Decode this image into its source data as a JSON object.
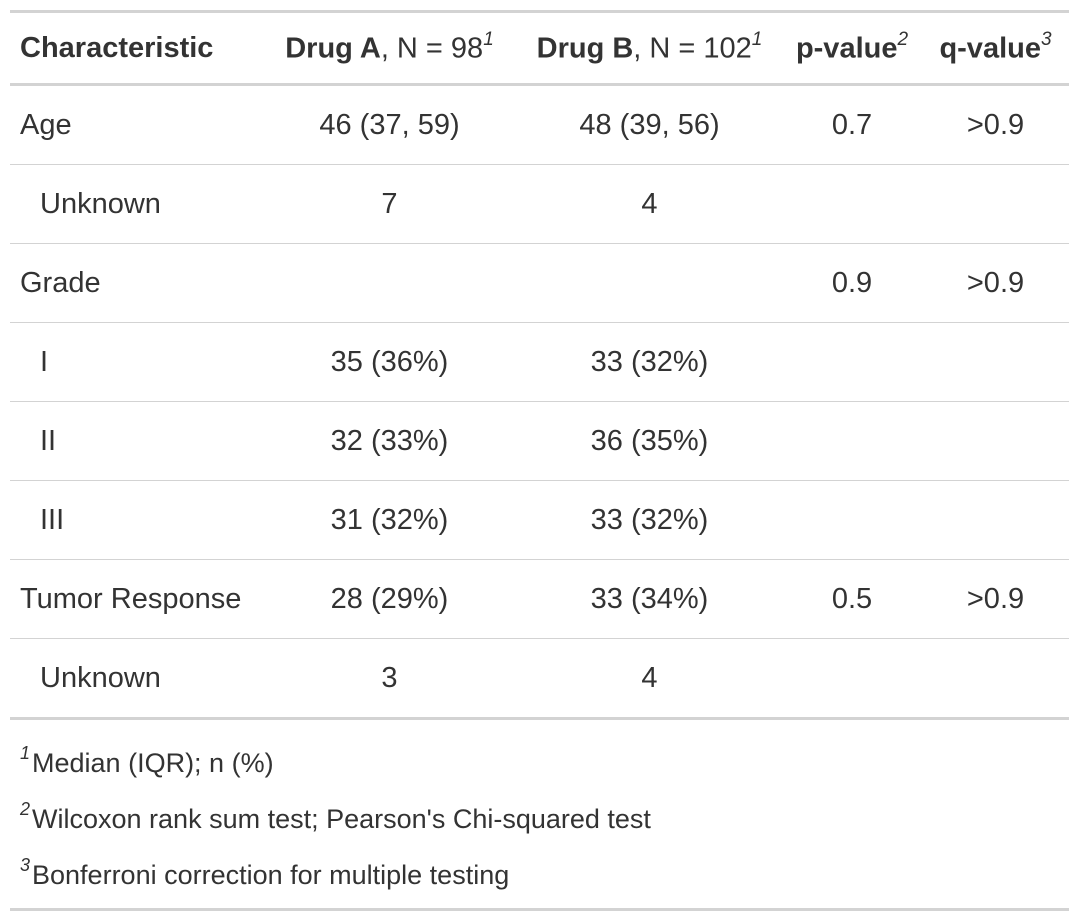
{
  "header": {
    "characteristic": "Characteristic",
    "drug_a_name": "Drug A",
    "drug_a_n": ", N = 98",
    "drug_a_sup": "1",
    "drug_b_name": "Drug B",
    "drug_b_n": ", N = 102",
    "drug_b_sup": "1",
    "p_value": "p-value",
    "p_value_sup": "2",
    "q_value": "q-value",
    "q_value_sup": "3"
  },
  "rows": [
    {
      "label": "Age",
      "drug_a": "46 (37, 59)",
      "drug_b": "48 (39, 56)",
      "p": "0.7",
      "q": ">0.9"
    },
    {
      "label": "Unknown",
      "drug_a": "7",
      "drug_b": "4",
      "p": "",
      "q": ""
    },
    {
      "label": "Grade",
      "drug_a": "",
      "drug_b": "",
      "p": "0.9",
      "q": ">0.9"
    },
    {
      "label": "I",
      "drug_a": "35 (36%)",
      "drug_b": "33 (32%)",
      "p": "",
      "q": ""
    },
    {
      "label": "II",
      "drug_a": "32 (33%)",
      "drug_b": "36 (35%)",
      "p": "",
      "q": ""
    },
    {
      "label": "III",
      "drug_a": "31 (32%)",
      "drug_b": "33 (32%)",
      "p": "",
      "q": ""
    },
    {
      "label": "Tumor Response",
      "drug_a": "28 (29%)",
      "drug_b": "33 (34%)",
      "p": "0.5",
      "q": ">0.9"
    },
    {
      "label": "Unknown",
      "drug_a": "3",
      "drug_b": "4",
      "p": "",
      "q": ""
    }
  ],
  "footnotes": [
    {
      "mark": "1",
      "text": "Median (IQR); n (%)"
    },
    {
      "mark": "2",
      "text": "Wilcoxon rank sum test; Pearson's Chi-squared test"
    },
    {
      "mark": "3",
      "text": "Bonferroni correction for multiple testing"
    }
  ],
  "colors": {
    "text": "#333333",
    "rule": "#d3d3d3"
  }
}
